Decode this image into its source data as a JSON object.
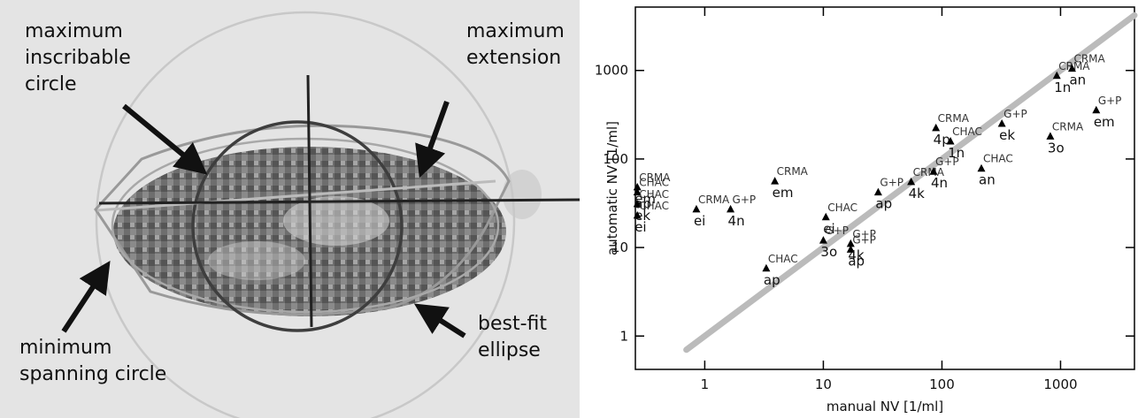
{
  "image_panel": {
    "labels": [
      [
        "maximum",
        "inscribable",
        "circle"
      ],
      [
        "maximum",
        "extension"
      ],
      [
        "minimum",
        "spanning circle"
      ],
      [
        "best-fit",
        "ellipse"
      ]
    ]
  },
  "chart_data": {
    "type": "scatter",
    "x_label": "manual NV [1/ml]",
    "y_label": "automatic NV [1/ml]",
    "log_x": true,
    "log_y": true,
    "xlim": [
      0.26,
      4200
    ],
    "ylim": [
      0.42,
      5200
    ],
    "xticks": [
      1,
      10,
      100,
      1000
    ],
    "yticks": [
      1,
      10,
      100,
      1000
    ],
    "marker_color": "#000000",
    "reference_line": {
      "x": [
        0.7,
        4200
      ],
      "y": [
        0.7,
        4200
      ],
      "color": "#bbbbbb"
    },
    "points": [
      {
        "method": "CHAC",
        "site": "ap",
        "x": 0.27,
        "y": 42
      },
      {
        "method": "CRMA",
        "site": "em",
        "x": 0.27,
        "y": 48
      },
      {
        "method": "CHAC",
        "site": "ek",
        "x": 0.27,
        "y": 31
      },
      {
        "method": "CHAC",
        "site": "ei",
        "x": 0.27,
        "y": 23
      },
      {
        "method": "CRMA",
        "site": "ei",
        "x": 0.85,
        "y": 27
      },
      {
        "method": "G+P",
        "site": "4n",
        "x": 1.65,
        "y": 27
      },
      {
        "method": "CRMA",
        "site": "em",
        "x": 3.9,
        "y": 56
      },
      {
        "method": "CHAC",
        "site": "ap",
        "x": 3.3,
        "y": 5.8
      },
      {
        "method": "CHAC",
        "site": "ei",
        "x": 10.5,
        "y": 22
      },
      {
        "method": "G+P",
        "site": "3o",
        "x": 10,
        "y": 12
      },
      {
        "method": "G+P",
        "site": "ap",
        "x": 17,
        "y": 9.5
      },
      {
        "method": "G+P",
        "site": "4k",
        "x": 17,
        "y": 11
      },
      {
        "method": "G+P",
        "site": "ap",
        "x": 29,
        "y": 42
      },
      {
        "method": "CRMA",
        "site": "4k",
        "x": 55,
        "y": 55
      },
      {
        "method": "G+P",
        "site": "4n",
        "x": 85,
        "y": 72
      },
      {
        "method": "CHAC",
        "site": "1n",
        "x": 118,
        "y": 158
      },
      {
        "method": "CHAC",
        "site": "an",
        "x": 215,
        "y": 78
      },
      {
        "method": "CRMA",
        "site": "4p",
        "x": 89,
        "y": 224
      },
      {
        "method": "G+P",
        "site": "ek",
        "x": 320,
        "y": 250
      },
      {
        "method": "CRMA",
        "site": "3o",
        "x": 820,
        "y": 180
      },
      {
        "method": "CRMA",
        "site": "1n",
        "x": 930,
        "y": 870
      },
      {
        "method": "CRMA",
        "site": "an",
        "x": 1250,
        "y": 1050
      },
      {
        "method": "G+P",
        "site": "em",
        "x": 2000,
        "y": 355
      }
    ]
  }
}
